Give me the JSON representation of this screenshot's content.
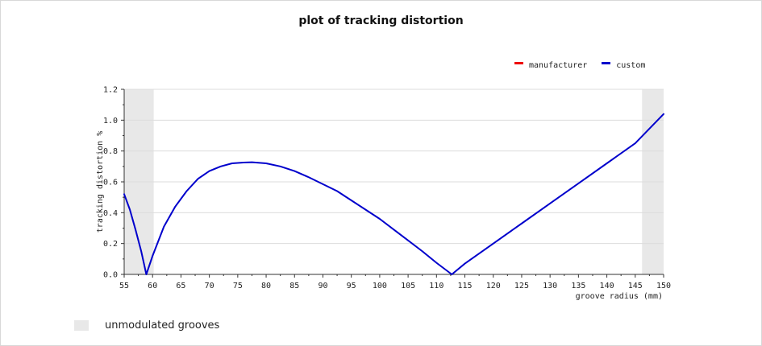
{
  "chart_data": {
    "type": "line",
    "title": "plot of tracking distortion",
    "xlabel": "groove radius (mm)",
    "ylabel": "tracking distortion %",
    "xlim": [
      55,
      150
    ],
    "ylim": [
      0,
      1.2
    ],
    "x_ticks": [
      55,
      60,
      65,
      70,
      75,
      80,
      85,
      90,
      95,
      100,
      105,
      110,
      115,
      120,
      125,
      130,
      135,
      140,
      145,
      150
    ],
    "y_ticks": [
      "0.0",
      "0.2",
      "0.4",
      "0.6",
      "0.8",
      "1.0",
      "1.2"
    ],
    "grid": "horizontal",
    "legend_position": "top-right",
    "shaded_regions": [
      {
        "label": "unmodulated grooves",
        "x": [
          55,
          60.2
        ]
      },
      {
        "label": "unmodulated grooves",
        "x": [
          146.2,
          150
        ]
      }
    ],
    "shade_color": "#e8e8e8",
    "series": [
      {
        "name": "manufacturer",
        "color": "#ee0000",
        "points": []
      },
      {
        "name": "custom",
        "color": "#0000cc",
        "points": [
          [
            55,
            0.52
          ],
          [
            56,
            0.42
          ],
          [
            57,
            0.29
          ],
          [
            58,
            0.15
          ],
          [
            58.9,
            0.0
          ],
          [
            60,
            0.12
          ],
          [
            62,
            0.31
          ],
          [
            64,
            0.44
          ],
          [
            66,
            0.54
          ],
          [
            68,
            0.62
          ],
          [
            70,
            0.67
          ],
          [
            72,
            0.7
          ],
          [
            74,
            0.72
          ],
          [
            76,
            0.725
          ],
          [
            77.5,
            0.727
          ],
          [
            80,
            0.72
          ],
          [
            82.5,
            0.7
          ],
          [
            85,
            0.67
          ],
          [
            87.5,
            0.63
          ],
          [
            90,
            0.585
          ],
          [
            92.5,
            0.54
          ],
          [
            95,
            0.48
          ],
          [
            97.5,
            0.42
          ],
          [
            100,
            0.36
          ],
          [
            102.5,
            0.29
          ],
          [
            105,
            0.22
          ],
          [
            107.5,
            0.15
          ],
          [
            110,
            0.075
          ],
          [
            112.7,
            0.0
          ],
          [
            115,
            0.07
          ],
          [
            120,
            0.2
          ],
          [
            125,
            0.33
          ],
          [
            130,
            0.46
          ],
          [
            135,
            0.59
          ],
          [
            140,
            0.72
          ],
          [
            145,
            0.85
          ],
          [
            150,
            1.04
          ]
        ]
      }
    ]
  },
  "footer_legend": {
    "label": "unmodulated grooves"
  }
}
